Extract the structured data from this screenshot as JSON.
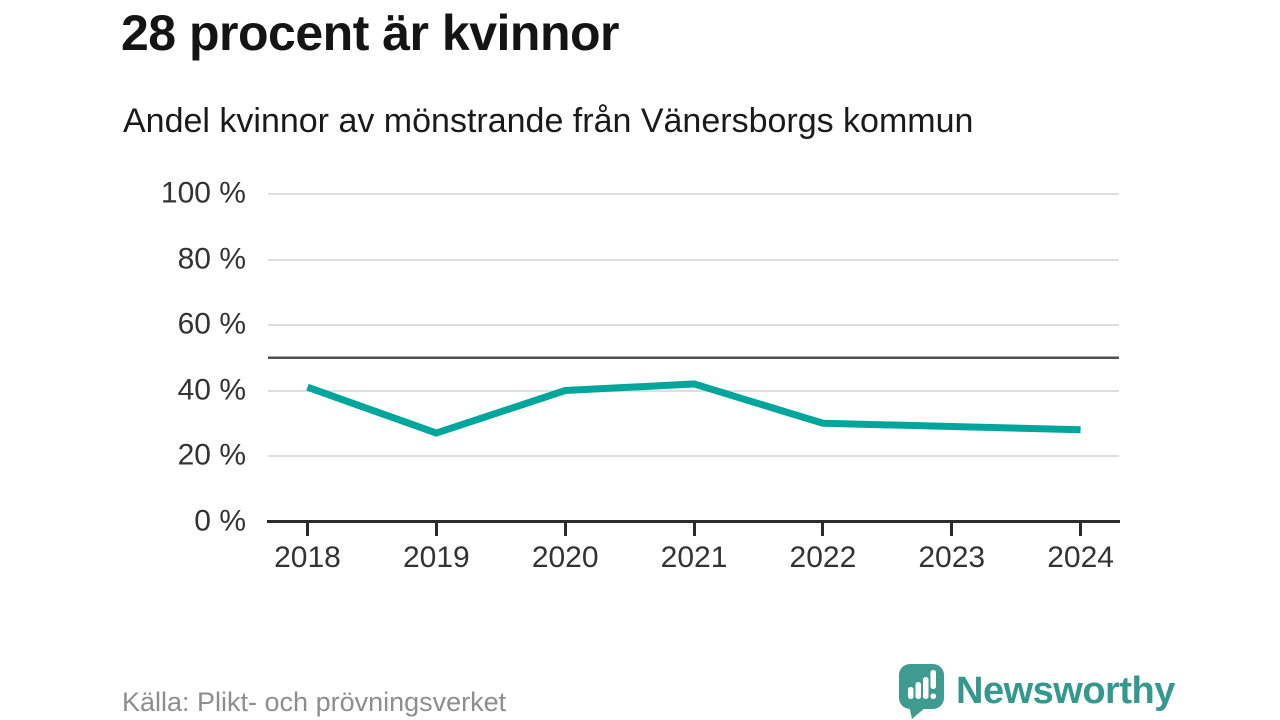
{
  "header": {
    "title": "28 procent är kvinnor",
    "subtitle": "Andel kvinnor av mönstrande från Vänersborgs kommun"
  },
  "footer": {
    "source": "Källa: Plikt- och prövningsverket",
    "brand": "Newsworthy",
    "logo_icon": "newsworthy-speech-bubble-barchart-icon"
  },
  "colors": {
    "line": "#00a69b",
    "reference_line": "#4f4f4f",
    "gridline": "#dedede",
    "axis": "#2b2b2b",
    "axis_text": "#333333",
    "title_text": "#141414",
    "source_text": "#8e8e8e",
    "brand_teal": "#35988e",
    "logo_bubble": "#3f9b90"
  },
  "chart_data": {
    "type": "line",
    "title": "28 procent är kvinnor",
    "subtitle": "Andel kvinnor av mönstrande från Vänersborgs kommun",
    "x": [
      2018,
      2019,
      2020,
      2021,
      2022,
      2023,
      2024
    ],
    "x_tick_labels": [
      "2018",
      "2019",
      "2020",
      "2021",
      "2022",
      "2023",
      "2024"
    ],
    "series": [
      {
        "name": "Andel kvinnor (%)",
        "values": [
          41,
          27,
          40,
          42,
          30,
          29,
          28
        ]
      }
    ],
    "y_ticks": [
      "100 %",
      "80 %",
      "60 %",
      "40 %",
      "20 %",
      "0 %"
    ],
    "y_tick_values": [
      100,
      80,
      60,
      40,
      20,
      0
    ],
    "ylim": [
      0,
      100
    ],
    "reference_line_y": 50,
    "grid": true,
    "legend": false,
    "xlabel": "",
    "ylabel": ""
  }
}
